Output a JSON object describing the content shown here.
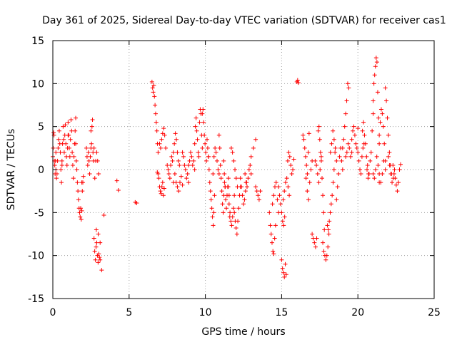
{
  "chart_data": {
    "type": "scatter",
    "title": "Day 361 of 2025, Sidereal Day-to-day VTEC variation (SDTVAR) for receiver cas1",
    "xlabel": "GPS time / hours",
    "ylabel": "SDTVAR / TECUs",
    "xlim": [
      0,
      25
    ],
    "ylim": [
      -15,
      15
    ],
    "xticks": [
      "0",
      "5",
      "10",
      "15",
      "20",
      "25"
    ],
    "yticks": [
      "15",
      "10",
      "5",
      "0",
      "-5",
      "-10",
      "-15"
    ],
    "grid": true,
    "marker": "+",
    "series_color": "#ff0000",
    "series": [
      {
        "name": "SDTVAR",
        "segments": [
          {
            "x0": 0.0,
            "x1": 0.2,
            "y": [
              1.5,
              2.5,
              4.3,
              4.0,
              1.0,
              0.5,
              -0.5,
              1.0,
              2.0
            ]
          },
          {
            "x0": 0.2,
            "x1": 0.6,
            "y": [
              0.0,
              -1.0,
              -0.5,
              1.0,
              2.5,
              3.5,
              4.5,
              3.0,
              2.0,
              0.0,
              -1.5,
              0.5
            ]
          },
          {
            "x0": 0.6,
            "x1": 1.0,
            "y": [
              1.0,
              3.0,
              5.0,
              3.5,
              2.0,
              4.0,
              5.2,
              3.0,
              1.5,
              0.5,
              2.5,
              4.0
            ]
          },
          {
            "x0": 1.0,
            "x1": 1.5,
            "y": [
              5.5,
              4.0,
              2.5,
              1.5,
              3.5,
              5.8,
              4.5,
              2.0,
              0.5,
              -1.0,
              1.5,
              3.0,
              4.5,
              6.0
            ]
          },
          {
            "x0": 1.5,
            "x1": 1.9,
            "y": [
              3.0,
              1.0,
              0.0,
              -1.5,
              -2.5,
              -3.5,
              -4.5,
              -5.0,
              -5.5,
              -4.5,
              -5.8,
              -4.8
            ]
          },
          {
            "x0": 1.9,
            "x1": 2.0,
            "y": [
              -1.5,
              -2.5,
              -1.5,
              -0.8
            ]
          },
          {
            "x0": 2.2,
            "x1": 2.5,
            "y": [
              2.5,
              1.5,
              0.5,
              2.0,
              1.0,
              -0.5,
              1.5,
              2.5
            ]
          },
          {
            "x0": 2.5,
            "x1": 2.7,
            "y": [
              4.5,
              3.0,
              5.0,
              5.8,
              2.0,
              1.0,
              2.5
            ]
          },
          {
            "x0": 2.75,
            "x1": 3.0,
            "y": [
              -1.0,
              1.0,
              2.0,
              1.0,
              -0.5
            ]
          },
          {
            "x0": 2.7,
            "x1": 3.1,
            "y": [
              -8.0,
              -9.5,
              -10.5,
              -9.0,
              -8.5,
              -10.0,
              -10.8,
              -9.8,
              -10.2,
              -10.5
            ]
          },
          {
            "x0": 2.85,
            "x1": 3.1,
            "y": [
              -7.0,
              -7.5,
              -8.5
            ]
          },
          {
            "x0": 3.2,
            "x1": 3.2,
            "y": [
              -11.7
            ]
          },
          {
            "x0": 3.35,
            "x1": 3.35,
            "y": [
              -5.3
            ]
          },
          {
            "x0": 4.2,
            "x1": 4.3,
            "y": [
              -1.3,
              -2.4
            ]
          },
          {
            "x0": 5.4,
            "x1": 5.5,
            "y": [
              -3.8,
              -3.9
            ]
          },
          {
            "x0": 6.5,
            "x1": 6.9,
            "y": [
              10.2,
              9.5,
              9.0,
              9.8,
              8.5,
              7.5,
              6.5,
              5.5,
              4.5,
              3.0,
              2.0
            ]
          },
          {
            "x0": 6.85,
            "x1": 7.3,
            "y": [
              -0.3,
              -0.5,
              -1.0,
              -2.0,
              -2.5,
              -2.8,
              -2.0,
              -1.5,
              -3.0,
              -2.2
            ]
          },
          {
            "x0": 7.0,
            "x1": 7.4,
            "y": [
              3.0,
              2.5,
              3.5,
              4.2,
              4.8,
              4.0,
              2.5
            ]
          },
          {
            "x0": 7.5,
            "x1": 7.9,
            "y": [
              0.5,
              0.0,
              -0.5,
              -1.0,
              0.5,
              1.5,
              1.0,
              -1.5
            ]
          },
          {
            "x0": 7.9,
            "x1": 8.3,
            "y": [
              2.0,
              3.0,
              4.2,
              3.5,
              2.0,
              1.0,
              0.5
            ]
          },
          {
            "x0": 8.0,
            "x1": 8.5,
            "y": [
              -0.5,
              -1.5,
              -2.0,
              -2.5,
              -1.5,
              -0.8,
              -1.8
            ]
          },
          {
            "x0": 8.5,
            "x1": 8.9,
            "y": [
              2.0,
              1.5,
              0.5,
              0.0,
              -1.0,
              -0.5,
              -1.5
            ]
          },
          {
            "x0": 8.9,
            "x1": 9.3,
            "y": [
              0.5,
              1.0,
              2.0,
              1.5,
              0.5,
              1.0,
              0.0
            ]
          },
          {
            "x0": 9.3,
            "x1": 9.8,
            "y": [
              3.0,
              5.0,
              6.0,
              4.5,
              3.5,
              2.0,
              1.5,
              5.5,
              7.0,
              6.5,
              4.0,
              2.5
            ]
          },
          {
            "x0": 9.8,
            "x1": 10.2,
            "y": [
              6.5,
              7.0,
              5.5,
              4.0,
              3.0,
              2.0,
              1.0,
              3.5,
              2.5,
              1.5
            ]
          },
          {
            "x0": 10.2,
            "x1": 10.6,
            "y": [
              1.5,
              0.0,
              -1.5,
              -2.5,
              -3.5,
              -4.5,
              -5.5,
              -6.5,
              -5.0,
              -3.0
            ]
          },
          {
            "x0": 10.5,
            "x1": 10.9,
            "y": [
              -0.5,
              1.5,
              2.5,
              2.0,
              1.0,
              0.0,
              -0.5
            ]
          },
          {
            "x0": 10.9,
            "x1": 11.3,
            "y": [
              4.0,
              2.5,
              0.5,
              -1.0,
              -2.5,
              -4.0,
              -5.0,
              -3.0,
              -1.5,
              -2.0
            ]
          },
          {
            "x0": 11.2,
            "x1": 11.6,
            "y": [
              1.0,
              -0.5,
              -2.0,
              -3.5,
              -4.5,
              -3.0,
              -2.0,
              -1.0,
              -4.0,
              -5.5
            ]
          },
          {
            "x0": 11.5,
            "x1": 11.9,
            "y": [
              -2.0,
              -3.0,
              -5.0,
              -6.0,
              -6.5,
              -5.5,
              -4.5,
              -3.0
            ]
          },
          {
            "x0": 11.9,
            "x1": 12.3,
            "y": [
              -5.0,
              -6.0,
              -6.8,
              -7.5,
              -6.0,
              -4.5,
              -3.0,
              -2.0
            ]
          },
          {
            "x0": 11.7,
            "x1": 12.1,
            "y": [
              2.5,
              2.0,
              1.0,
              0.0,
              -1.0,
              -2.0
            ]
          },
          {
            "x0": 12.3,
            "x1": 12.7,
            "y": [
              -1.0,
              -2.0,
              -3.0,
              -4.0,
              -3.5,
              -2.5,
              -1.5
            ]
          },
          {
            "x0": 12.6,
            "x1": 13.0,
            "y": [
              -0.5,
              -1.5,
              -2.0,
              -1.0,
              0.0,
              0.5,
              -0.5
            ]
          },
          {
            "x0": 13.0,
            "x1": 13.3,
            "y": [
              1.5,
              2.5,
              3.5
            ]
          },
          {
            "x0": 13.3,
            "x1": 13.6,
            "y": [
              -2.0,
              -2.5,
              -3.0,
              -3.5,
              -2.5
            ]
          },
          {
            "x0": 14.2,
            "x1": 14.6,
            "y": [
              -5.0,
              -6.5,
              -7.5,
              -8.5,
              -9.5,
              -9.8,
              -8.0,
              -6.5
            ]
          },
          {
            "x0": 14.4,
            "x1": 14.8,
            "y": [
              -4.0,
              -3.0,
              -2.0,
              -1.5,
              -3.5,
              -5.0
            ]
          },
          {
            "x0": 14.8,
            "x1": 15.2,
            "y": [
              -2.0,
              -3.0,
              -4.0,
              -5.0,
              -6.0,
              -6.5,
              -5.5
            ]
          },
          {
            "x0": 15.0,
            "x1": 15.3,
            "y": [
              -10.5,
              -11.5,
              -12.0,
              -12.5,
              -11.0,
              -12.2
            ]
          },
          {
            "x0": 15.1,
            "x1": 15.5,
            "y": [
              -3.5,
              -2.5,
              -1.5,
              -1.0,
              -2.0,
              -3.0
            ]
          },
          {
            "x0": 15.4,
            "x1": 15.8,
            "y": [
              1.0,
              2.0,
              1.5,
              0.5,
              -0.5,
              0.0,
              1.2
            ]
          },
          {
            "x0": 16.0,
            "x1": 16.1,
            "y": [
              10.2,
              10.4,
              10.1
            ]
          },
          {
            "x0": 16.4,
            "x1": 16.8,
            "y": [
              4.0,
              3.5,
              2.5,
              1.5,
              0.5,
              -0.5,
              2.0,
              4.2
            ]
          },
          {
            "x0": 16.6,
            "x1": 17.0,
            "y": [
              -1.0,
              -2.5,
              -3.5,
              -1.5,
              0.0,
              1.0
            ]
          },
          {
            "x0": 17.0,
            "x1": 17.3,
            "y": [
              -7.5,
              -8.0,
              -8.5,
              -9.0,
              -8.0
            ]
          },
          {
            "x0": 17.2,
            "x1": 17.6,
            "y": [
              1.0,
              0.5,
              -0.5,
              -1.5,
              0.0,
              1.5
            ]
          },
          {
            "x0": 17.4,
            "x1": 17.8,
            "y": [
              4.5,
              5.0,
              3.5,
              2.0,
              1.0,
              -1.0,
              -3.0,
              -5.0,
              -7.0
            ]
          },
          {
            "x0": 17.7,
            "x1": 18.1,
            "y": [
              -8.5,
              -9.5,
              -10.0,
              -10.5,
              -10.0,
              -9.0,
              -7.5
            ]
          },
          {
            "x0": 18.0,
            "x1": 18.5,
            "y": [
              -6.5,
              -7.0,
              -6.0,
              -5.0,
              -4.0,
              -3.0,
              -1.5,
              0.0,
              2.0
            ]
          },
          {
            "x0": 18.2,
            "x1": 18.6,
            "y": [
              2.0,
              3.0,
              4.5,
              3.5,
              2.5,
              1.0
            ]
          },
          {
            "x0": 18.6,
            "x1": 19.0,
            "y": [
              -3.5,
              -2.0,
              -0.5,
              1.5,
              2.5,
              1.0,
              0.0
            ]
          },
          {
            "x0": 19.0,
            "x1": 19.4,
            "y": [
              2.5,
              3.5,
              5.0,
              6.5,
              8.0,
              10.0,
              9.5
            ]
          },
          {
            "x0": 19.2,
            "x1": 19.6,
            "y": [
              1.5,
              2.0,
              3.0,
              2.5,
              1.5,
              2.0
            ]
          },
          {
            "x0": 19.6,
            "x1": 20.0,
            "y": [
              3.5,
              4.5,
              5.0,
              4.0,
              3.0,
              2.5,
              4.8
            ]
          },
          {
            "x0": 20.0,
            "x1": 20.4,
            "y": [
              2.0,
              1.0,
              0.0,
              -0.5,
              1.5,
              2.5,
              3.0
            ]
          },
          {
            "x0": 20.3,
            "x1": 20.7,
            "y": [
              4.5,
              5.5,
              4.0,
              3.0,
              1.5,
              0.5,
              -0.5
            ]
          },
          {
            "x0": 20.6,
            "x1": 21.0,
            "y": [
              0.0,
              -1.0,
              -0.5,
              1.0,
              2.0,
              4.5,
              6.5
            ]
          },
          {
            "x0": 21.0,
            "x1": 21.4,
            "y": [
              8.0,
              10.0,
              11.0,
              12.0,
              13.0,
              12.5,
              9.0,
              6.0,
              3.0
            ]
          },
          {
            "x0": 21.0,
            "x1": 21.4,
            "y": [
              -0.5,
              -1.0,
              0.0,
              1.5,
              0.5,
              -1.5
            ]
          },
          {
            "x0": 21.4,
            "x1": 21.8,
            "y": [
              4.0,
              5.5,
              7.0,
              6.5,
              5.0,
              3.0,
              1.0
            ]
          },
          {
            "x0": 21.4,
            "x1": 21.8,
            "y": [
              -0.5,
              -1.5,
              -0.5,
              1.0,
              0.0
            ]
          },
          {
            "x0": 21.8,
            "x1": 22.2,
            "y": [
              9.5,
              8.0,
              6.0,
              4.0,
              2.0,
              0.5,
              -0.5
            ]
          },
          {
            "x0": 22.0,
            "x1": 22.4,
            "y": [
              1.5,
              0.5,
              -0.5,
              -1.5,
              -1.0,
              0.0
            ]
          },
          {
            "x0": 22.3,
            "x1": 22.8,
            "y": [
              0.5,
              -0.5,
              -1.0,
              -1.8,
              -2.5,
              -1.5,
              0.0,
              0.6
            ]
          }
        ]
      }
    ]
  }
}
